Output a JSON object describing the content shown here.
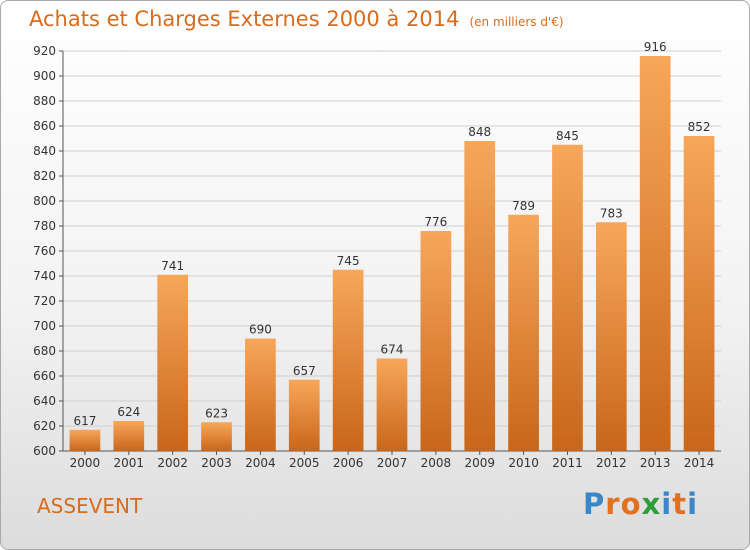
{
  "title": "Achats et Charges Externes 2000 à 2014",
  "unit": "(en milliers d'€)",
  "commune": "ASSEVENT",
  "brand": {
    "letters": [
      "P",
      "r",
      "o",
      "x",
      "i",
      "t",
      "i"
    ],
    "colors": [
      "#3a86c8",
      "#e2701e",
      "#e2701e",
      "#2e9c3a",
      "#3a86c8",
      "#e2701e",
      "#3a86c8"
    ]
  },
  "colors": {
    "bar_light": "#f7a75a",
    "bar_dark": "#c9661a",
    "title": "#d96b1c"
  },
  "chart_data": {
    "type": "bar",
    "categories": [
      "2000",
      "2001",
      "2002",
      "2003",
      "2004",
      "2005",
      "2006",
      "2007",
      "2008",
      "2009",
      "2010",
      "2011",
      "2012",
      "2013",
      "2014"
    ],
    "values": [
      617,
      624,
      741,
      623,
      690,
      657,
      745,
      674,
      776,
      848,
      789,
      845,
      783,
      916,
      852
    ],
    "ylim": [
      600,
      920
    ],
    "yticks": [
      600,
      620,
      640,
      660,
      680,
      700,
      720,
      740,
      760,
      780,
      800,
      820,
      840,
      860,
      880,
      900,
      920
    ],
    "grid": true
  }
}
